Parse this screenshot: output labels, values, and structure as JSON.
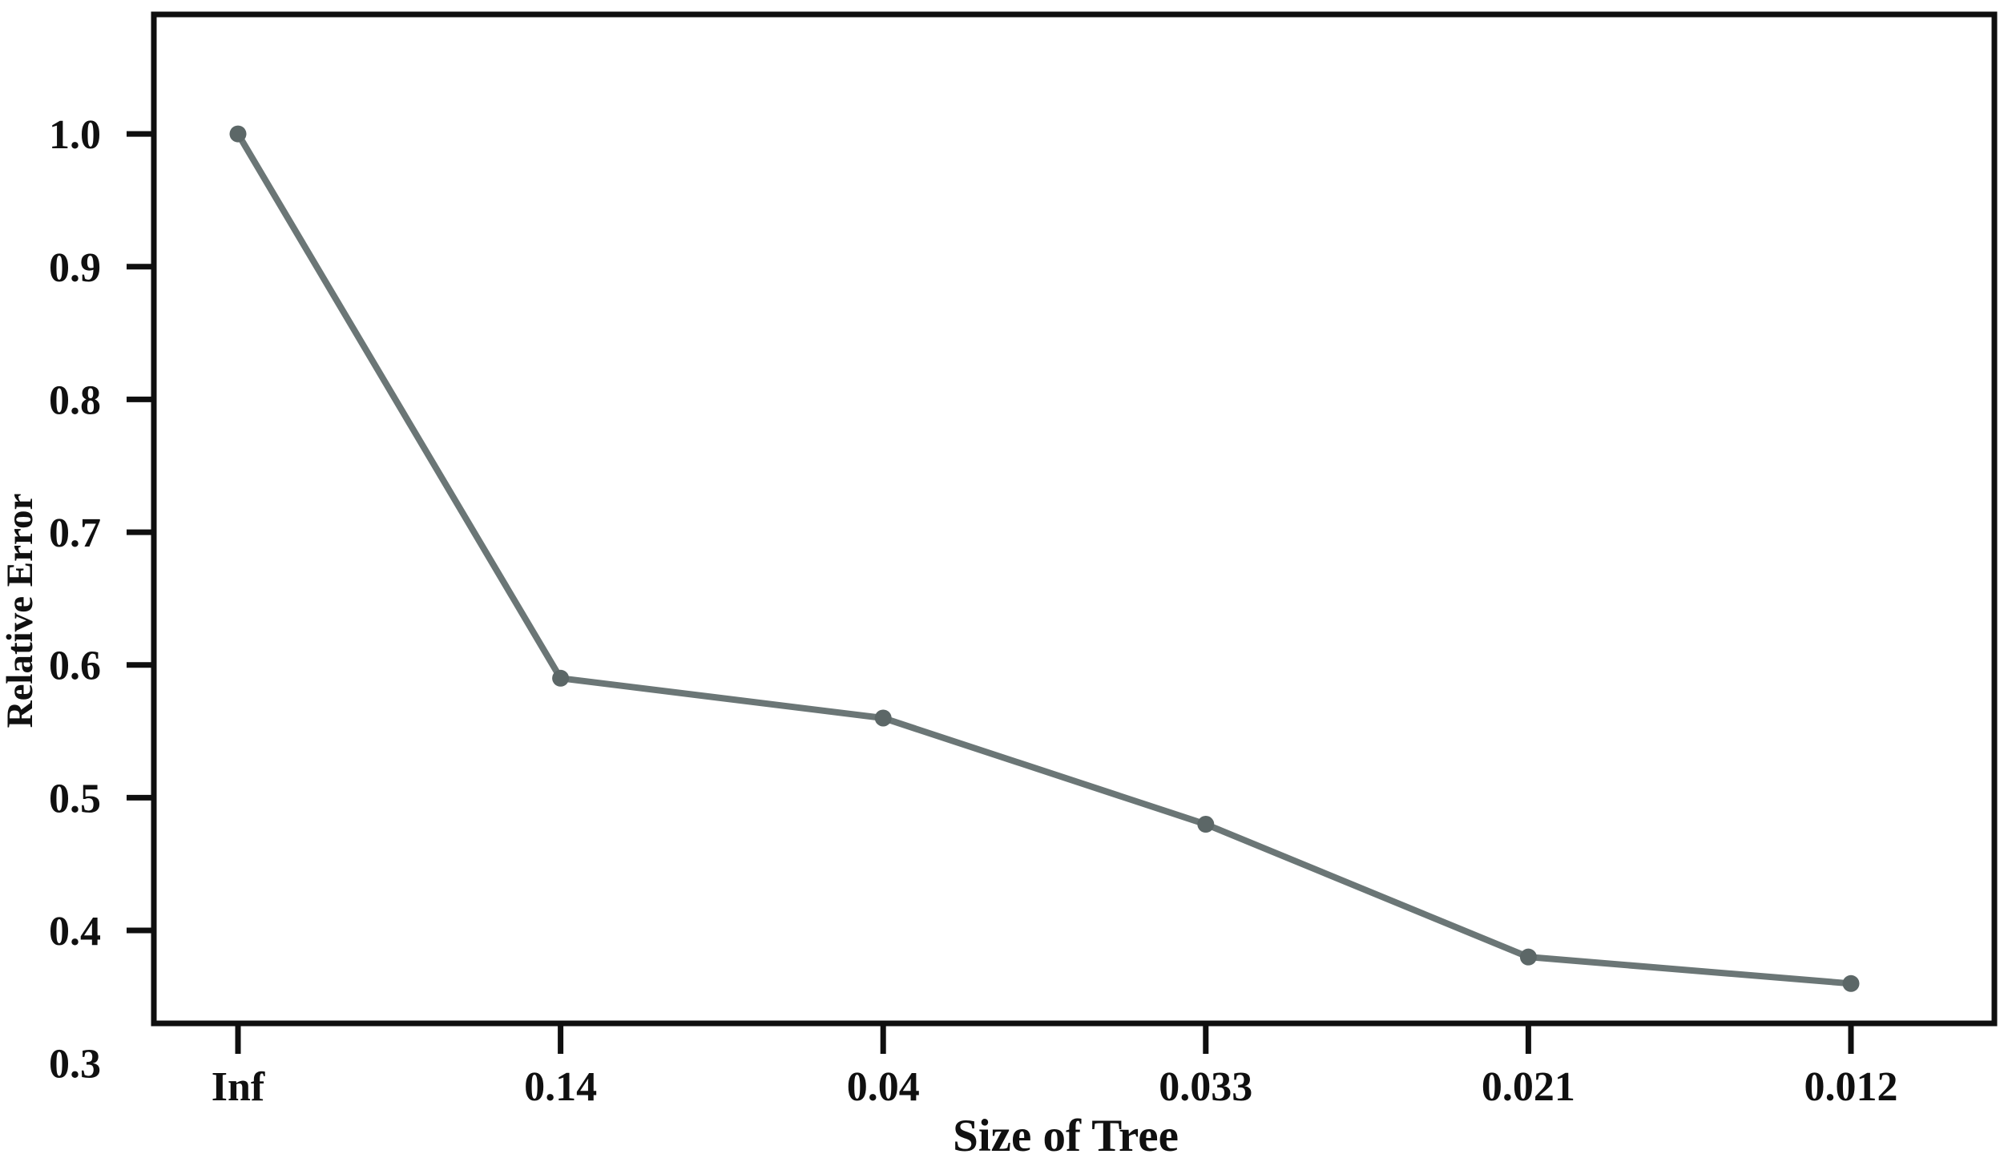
{
  "chart_data": {
    "type": "line",
    "categories": [
      "Inf",
      "0.14",
      "0.04",
      "0.033",
      "0.021",
      "0.012"
    ],
    "values": [
      1.0,
      0.59,
      0.56,
      0.48,
      0.38,
      0.36
    ],
    "series_name": "Relative Error",
    "title": "",
    "xlabel": "Size of Tree",
    "ylabel": "Relative Error",
    "y_ticks": [
      1.0,
      0.9,
      0.8,
      0.7,
      0.6,
      0.5,
      0.4,
      0.3
    ],
    "y_tick_labels": [
      "1.0",
      "0.9",
      "0.8",
      "0.7",
      "0.6",
      "0.5",
      "0.4",
      "0.3"
    ],
    "ylim": [
      0.33,
      1.09
    ],
    "grid": false,
    "legend": false,
    "marker": "filled-circle",
    "colors": {
      "line": "#6b7676",
      "marker": "#5c6767",
      "axis": "#0f0f0f",
      "text": "#101010",
      "background": "#ffffff"
    }
  }
}
